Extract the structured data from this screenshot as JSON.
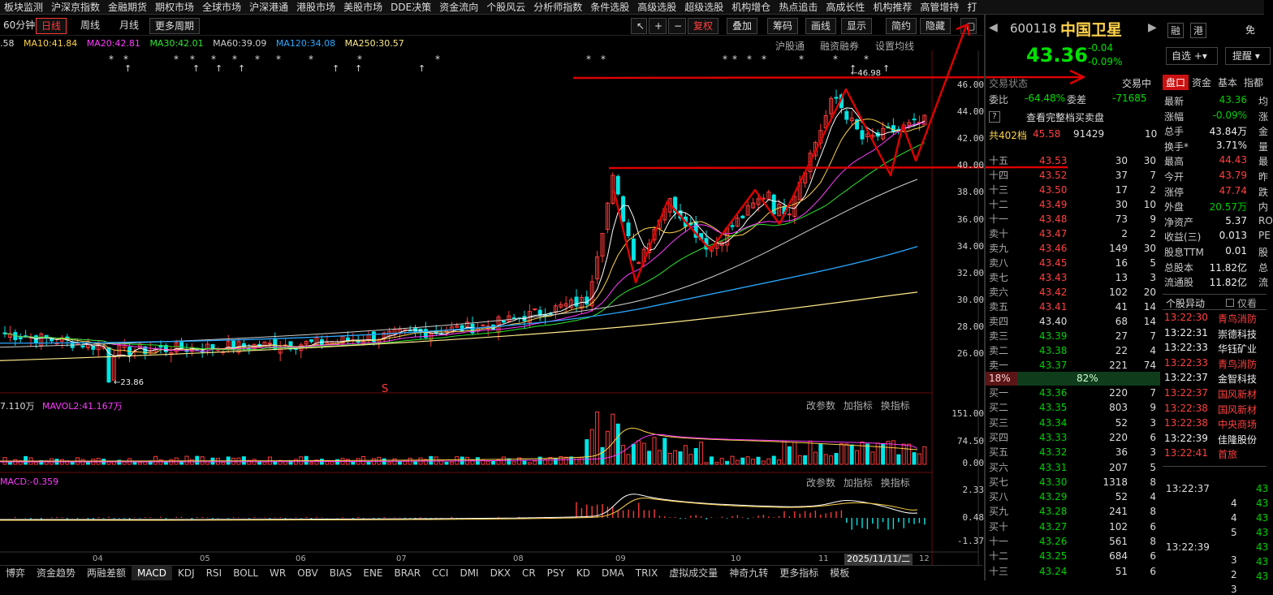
{
  "menu": [
    "板块监测",
    "沪深京指数",
    "金融期货",
    "期权市场",
    "全球市场",
    "沪深港通",
    "港股市场",
    "美股市场",
    "DDE决策",
    "资金流向",
    "个股风云",
    "分析师指数",
    "条件选股",
    "高级选股",
    "超级选股",
    "机构增仓",
    "热点追击",
    "高成长性",
    "机构推荐",
    "高管增持",
    "打"
  ],
  "toolbar": {
    "period": "60分钟",
    "daily": "日线",
    "weekly": "周线",
    "monthly": "月线",
    "more": "更多周期",
    "fuquan": "复权",
    "overlay": "叠加",
    "chip": "筹码",
    "draw": "画线",
    "display": "显示",
    "simple": "简约",
    "hide": "隐藏"
  },
  "ma": {
    "ma5": ".58",
    "ma10": "MA10:41.84",
    "ma20": "MA20:42.81",
    "ma30": "MA30:42.01",
    "ma60": "MA60:39.09",
    "ma120": "MA120:34.08",
    "ma250": "MA250:30.57"
  },
  "chart_tools": {
    "hgt": "沪股通",
    "margin": "融资融券",
    "setma": "设置均线"
  },
  "price_axis": [
    "46.00",
    "44.00",
    "42.00",
    "40.00",
    "38.00",
    "36.00",
    "34.00",
    "32.00",
    "30.00",
    "28.00",
    "26.00"
  ],
  "hi_label": "46.98",
  "lo_label": "23.86",
  "vol": {
    "title": "7.110万",
    "mavol2": "MAVOL2:41.167万",
    "axis": [
      "151.00",
      "74.50",
      "0.00"
    ]
  },
  "macd": {
    "title": "MACD:-0.359",
    "axis": [
      "2.33",
      "0.48",
      "-1.37"
    ]
  },
  "panel_btns": [
    "改参数",
    "加指标",
    "换指标"
  ],
  "xaxis": [
    "04",
    "05",
    "06",
    "07",
    "08",
    "09",
    "10",
    "11",
    "12"
  ],
  "date_box": "2025/11/11/二",
  "tabs": [
    "博弈",
    "资金趋势",
    "两融差额",
    "MACD",
    "KDJ",
    "RSI",
    "BOLL",
    "WR",
    "OBV",
    "BIAS",
    "ENE",
    "BRAR",
    "CCI",
    "DMI",
    "DKX",
    "CR",
    "PSY",
    "KD",
    "DMA",
    "TRIX",
    "虚拟成交量",
    "神奇九转",
    "更多指标",
    "模板"
  ],
  "stock": {
    "code": "600118",
    "name": "中国卫星",
    "price": "43.36",
    "chg": "-0.04",
    "pct": "-0.09%",
    "btn1": "融",
    "btn2": "港",
    "btn3": "免",
    "self": "自选",
    "remind": "提醒",
    "state_lbl": "交易状态",
    "state": "交易中",
    "wb_lbl": "委比",
    "wb": "-64.48%",
    "wc_lbl": "委差",
    "wc": "-71685",
    "view_full": "查看完整档买卖盘",
    "total_lbl": "共402档",
    "total_p": "45.58",
    "total_v": "91429",
    "total_n": "10",
    "buy_pct": "18%",
    "sell_pct": "82%"
  },
  "sells": [
    [
      "十五",
      "43.53",
      "30",
      "30"
    ],
    [
      "十四",
      "43.52",
      "37",
      "7"
    ],
    [
      "十三",
      "43.50",
      "17",
      "2"
    ],
    [
      "十二",
      "43.49",
      "30",
      "10"
    ],
    [
      "十一",
      "43.48",
      "73",
      "9"
    ],
    [
      "卖十",
      "43.47",
      "2",
      "2"
    ],
    [
      "卖九",
      "43.46",
      "149",
      "30"
    ],
    [
      "卖八",
      "43.45",
      "16",
      "5"
    ],
    [
      "卖七",
      "43.43",
      "13",
      "3"
    ],
    [
      "卖六",
      "43.42",
      "102",
      "20"
    ],
    [
      "卖五",
      "43.41",
      "41",
      "14"
    ],
    [
      "卖四",
      "43.40",
      "68",
      "14"
    ],
    [
      "卖三",
      "43.39",
      "27",
      "7"
    ],
    [
      "卖二",
      "43.38",
      "22",
      "4"
    ],
    [
      "卖一",
      "43.37",
      "221",
      "74"
    ]
  ],
  "buys": [
    [
      "买一",
      "43.36",
      "220",
      "7"
    ],
    [
      "买二",
      "43.35",
      "803",
      "9"
    ],
    [
      "买三",
      "43.34",
      "52",
      "3"
    ],
    [
      "买四",
      "43.33",
      "220",
      "6"
    ],
    [
      "买五",
      "43.32",
      "36",
      "3"
    ],
    [
      "买六",
      "43.31",
      "207",
      "5"
    ],
    [
      "买七",
      "43.30",
      "1318",
      "8"
    ],
    [
      "买八",
      "43.29",
      "52",
      "4"
    ],
    [
      "买九",
      "43.28",
      "241",
      "8"
    ],
    [
      "买十",
      "43.27",
      "102",
      "6"
    ],
    [
      "十一",
      "43.26",
      "561",
      "8"
    ],
    [
      "十二",
      "43.25",
      "684",
      "6"
    ],
    [
      "十三",
      "43.24",
      "51",
      "6"
    ]
  ],
  "quote_tabs": [
    "盘口",
    "资金",
    "基本",
    "指都"
  ],
  "quote": [
    [
      "最新",
      "43.36",
      "均"
    ],
    [
      "涨幅",
      "-0.09%",
      "涨"
    ],
    [
      "总手",
      "43.84万",
      "金"
    ],
    [
      "换手*",
      "3.71%",
      "量"
    ],
    [
      "最高",
      "44.43",
      "最"
    ],
    [
      "今开",
      "43.79",
      "昨"
    ],
    [
      "涨停",
      "47.74",
      "跌"
    ],
    [
      "外盘",
      "20.57万",
      "内"
    ],
    [
      "净资产",
      "5.37",
      "RO"
    ],
    [
      "收益(三)",
      "0.013",
      "PE"
    ],
    [
      "股息TTM",
      "0.01",
      "股"
    ],
    [
      "总股本",
      "11.82亿",
      "总"
    ],
    [
      "流通股",
      "11.82亿",
      "流"
    ]
  ],
  "anomaly": {
    "title": "个股异动",
    "only": "仅看",
    "rows": [
      [
        "13:22:30",
        "青鸟消防"
      ],
      [
        "13:22:31",
        "崇德科技"
      ],
      [
        "13:22:33",
        "华钰矿业"
      ],
      [
        "13:22:33",
        "青鸟消防"
      ],
      [
        "13:22:37",
        "金智科技"
      ],
      [
        "13:22:37",
        "国风新材"
      ],
      [
        "13:22:38",
        "国风新材"
      ],
      [
        "13:22:38",
        "中央商场"
      ],
      [
        "13:22:39",
        "佳隆股份"
      ],
      [
        "13:22:41",
        "首旅"
      ]
    ]
  },
  "ticks": {
    "t1": "13:22:37",
    "t2": "13:22:39",
    "nums": [
      "4",
      "4",
      "5",
      "3",
      "2",
      "3"
    ],
    "prices": [
      "43",
      "43",
      "43",
      "43",
      "43",
      "43",
      "43"
    ]
  }
}
